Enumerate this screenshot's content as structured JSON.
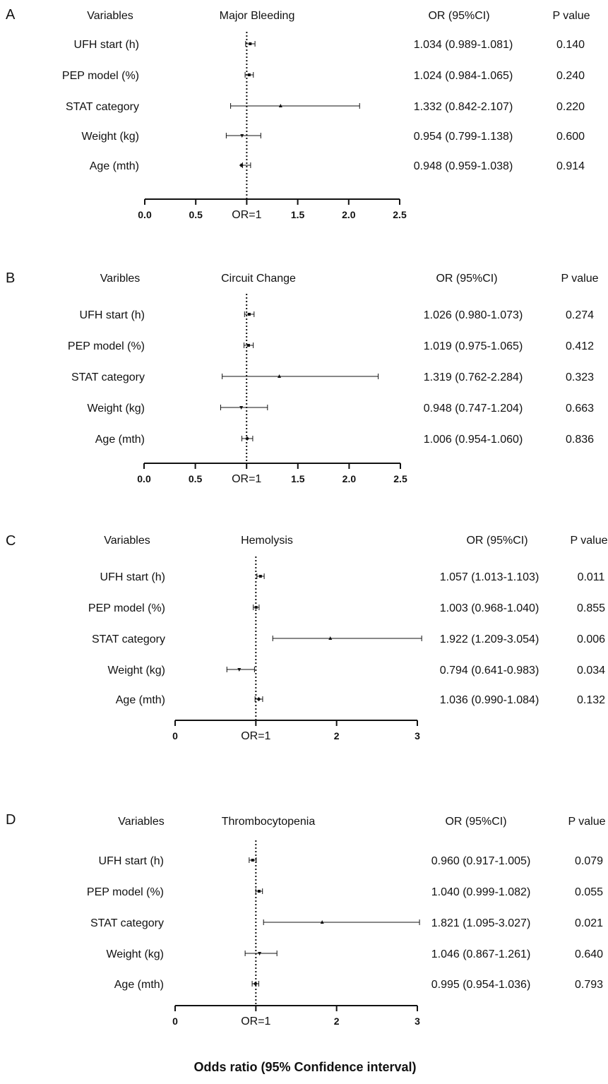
{
  "footer_label": "Odds ratio (95% Confidence interval)",
  "colors": {
    "ink": "#111111",
    "background": "#ffffff"
  },
  "chart_data": [
    {
      "type": "forest",
      "panel_label": "A",
      "headers": {
        "variables": "Variables",
        "outcome": "Major Bleeding",
        "or_ci": "OR (95%CI)",
        "p": "P value"
      },
      "rows": [
        {
          "variable": "UFH start (h)",
          "or": 1.034,
          "lower": 0.989,
          "upper": 1.081,
          "or_text": "1.034 (0.989-1.081)",
          "p": "0.140",
          "marker": "square"
        },
        {
          "variable": "PEP model (%)",
          "or": 1.024,
          "lower": 0.984,
          "upper": 1.065,
          "or_text": "1.024 (0.984-1.065)",
          "p": "0.240",
          "marker": "square"
        },
        {
          "variable": "STAT category",
          "or": 1.332,
          "lower": 0.842,
          "upper": 2.107,
          "or_text": "1.332 (0.842-2.107)",
          "p": "0.220",
          "marker": "triangle-up"
        },
        {
          "variable": "Weight (kg)",
          "or": 0.954,
          "lower": 0.799,
          "upper": 1.138,
          "or_text": "0.954 (0.799-1.138)",
          "p": "0.600",
          "marker": "triangle-down"
        },
        {
          "variable": "Age (mth)",
          "or": 0.948,
          "lower": 0.959,
          "upper": 1.038,
          "or_text": "0.948 (0.959-1.038)",
          "p": "0.914",
          "marker": "diamond"
        }
      ],
      "x_axis": {
        "range": [
          0,
          2.5
        ],
        "ticks": [
          "0.0",
          "0.5",
          "OR=1",
          "1.5",
          "2.0",
          "2.5"
        ],
        "tick_values": [
          0,
          0.5,
          1,
          1.5,
          2,
          2.5
        ],
        "reference": 1
      }
    },
    {
      "type": "forest",
      "panel_label": "B",
      "headers": {
        "variables": "Varibles",
        "outcome": "Circuit Change",
        "or_ci": "OR (95%CI)",
        "p": "P value"
      },
      "rows": [
        {
          "variable": "UFH start (h)",
          "or": 1.026,
          "lower": 0.98,
          "upper": 1.073,
          "or_text": "1.026 (0.980-1.073)",
          "p": "0.274",
          "marker": "square"
        },
        {
          "variable": "PEP model (%)",
          "or": 1.019,
          "lower": 0.975,
          "upper": 1.065,
          "or_text": "1.019 (0.975-1.065)",
          "p": "0.412",
          "marker": "square"
        },
        {
          "variable": "STAT category",
          "or": 1.319,
          "lower": 0.762,
          "upper": 2.284,
          "or_text": "1.319 (0.762-2.284)",
          "p": "0.323",
          "marker": "triangle-up"
        },
        {
          "variable": "Weight (kg)",
          "or": 0.948,
          "lower": 0.747,
          "upper": 1.204,
          "or_text": "0.948 (0.747-1.204)",
          "p": "0.663",
          "marker": "triangle-down"
        },
        {
          "variable": "Age (mth)",
          "or": 1.006,
          "lower": 0.954,
          "upper": 1.06,
          "or_text": "1.006 (0.954-1.060)",
          "p": "0.836",
          "marker": "diamond"
        }
      ],
      "x_axis": {
        "range": [
          0,
          2.5
        ],
        "ticks": [
          "0.0",
          "0.5",
          "OR=1",
          "1.5",
          "2.0",
          "2.5"
        ],
        "tick_values": [
          0,
          0.5,
          1,
          1.5,
          2,
          2.5
        ],
        "reference": 1
      }
    },
    {
      "type": "forest",
      "panel_label": "C",
      "headers": {
        "variables": "Variables",
        "outcome": "Hemolysis",
        "or_ci": "OR (95%CI)",
        "p": "P value"
      },
      "rows": [
        {
          "variable": "UFH start (h)",
          "or": 1.057,
          "lower": 1.013,
          "upper": 1.103,
          "or_text": "1.057 (1.013-1.103)",
          "p": "0.011",
          "marker": "square"
        },
        {
          "variable": "PEP model (%)",
          "or": 1.003,
          "lower": 0.968,
          "upper": 1.04,
          "or_text": "1.003 (0.968-1.040)",
          "p": "0.855",
          "marker": "square"
        },
        {
          "variable": "STAT category",
          "or": 1.922,
          "lower": 1.209,
          "upper": 3.054,
          "or_text": "1.922 (1.209-3.054)",
          "p": "0.006",
          "marker": "triangle-up"
        },
        {
          "variable": "Weight (kg)",
          "or": 0.794,
          "lower": 0.641,
          "upper": 0.983,
          "or_text": "0.794 (0.641-0.983)",
          "p": "0.034",
          "marker": "triangle-down"
        },
        {
          "variable": "Age (mth)",
          "or": 1.036,
          "lower": 0.99,
          "upper": 1.084,
          "or_text": "1.036 (0.990-1.084)",
          "p": "0.132",
          "marker": "diamond"
        }
      ],
      "x_axis": {
        "range": [
          0,
          3
        ],
        "ticks": [
          "0",
          "OR=1",
          "2",
          "3"
        ],
        "tick_values": [
          0,
          1,
          2,
          3
        ],
        "reference": 1
      }
    },
    {
      "type": "forest",
      "panel_label": "D",
      "headers": {
        "variables": "Variables",
        "outcome": "Thrombocytopenia",
        "or_ci": "OR (95%CI)",
        "p": "P value"
      },
      "rows": [
        {
          "variable": "UFH start (h)",
          "or": 0.96,
          "lower": 0.917,
          "upper": 1.005,
          "or_text": "0.960 (0.917-1.005)",
          "p": "0.079",
          "marker": "square"
        },
        {
          "variable": "PEP model (%)",
          "or": 1.04,
          "lower": 0.999,
          "upper": 1.082,
          "or_text": "1.040 (0.999-1.082)",
          "p": "0.055",
          "marker": "square"
        },
        {
          "variable": "STAT category",
          "or": 1.821,
          "lower": 1.095,
          "upper": 3.027,
          "or_text": "1.821 (1.095-3.027)",
          "p": "0.021",
          "marker": "triangle-up"
        },
        {
          "variable": "Weight (kg)",
          "or": 1.046,
          "lower": 0.867,
          "upper": 1.261,
          "or_text": "1.046 (0.867-1.261)",
          "p": "0.640",
          "marker": "triangle-down"
        },
        {
          "variable": "Age (mth)",
          "or": 0.995,
          "lower": 0.954,
          "upper": 1.036,
          "or_text": "0.995 (0.954-1.036)",
          "p": "0.793",
          "marker": "diamond"
        }
      ],
      "x_axis": {
        "range": [
          0,
          3
        ],
        "ticks": [
          "0",
          "OR=1",
          "2",
          "3"
        ],
        "tick_values": [
          0,
          1,
          2,
          3
        ],
        "reference": 1
      }
    }
  ]
}
